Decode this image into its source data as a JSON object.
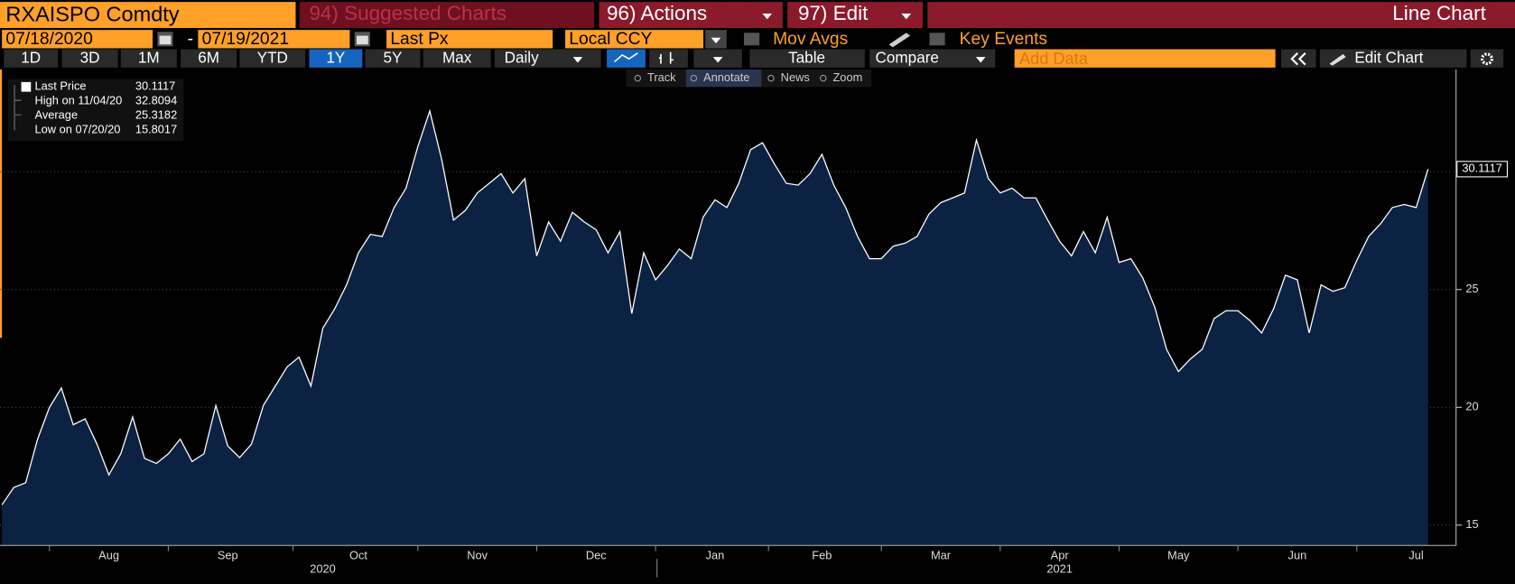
{
  "toolbar": {
    "ticker": "RXAISPO Comdty",
    "suggested": "94) Suggested Charts",
    "actions": "96) Actions",
    "edit": "97) Edit",
    "chart_type": "Line Chart",
    "start_date": "07/18/2020",
    "date_separator": "-",
    "end_date": "07/19/2021",
    "field": "Last Px",
    "currency": "Local CCY",
    "mov_avgs": "Mov Avgs",
    "key_events": "Key Events",
    "ranges": [
      "1D",
      "3D",
      "1M",
      "6M",
      "YTD",
      "1Y",
      "5Y",
      "Max"
    ],
    "selected_range": "1Y",
    "periodicity": "Daily",
    "table": "Table",
    "compare": "Compare",
    "add_data": "Add Data",
    "edit_chart": "Edit Chart",
    "tools": [
      "Track",
      "Annotate",
      "News",
      "Zoom"
    ]
  },
  "chart_data": {
    "type": "area",
    "color": "#ffffff",
    "fill": "#0b2242",
    "grid": true,
    "legend": [
      {
        "label": "Last Price",
        "value": "30.1117"
      },
      {
        "label": "High on 11/04/20",
        "value": "32.8094"
      },
      {
        "label": "Average",
        "value": "25.3182"
      },
      {
        "label": "Low on 07/20/20",
        "value": "15.8017"
      }
    ],
    "ylim": [
      14.14,
      34.34
    ],
    "yticks": [
      15,
      20,
      25,
      30
    ],
    "categories": [
      null,
      null,
      null,
      null,
      null,
      null,
      null,
      null,
      null,
      "Aug",
      null,
      null,
      null,
      null,
      null,
      null,
      null,
      null,
      null,
      "Sep",
      null,
      null,
      null,
      null,
      null,
      null,
      null,
      null,
      null,
      null,
      "Oct",
      null,
      null,
      null,
      null,
      null,
      null,
      null,
      null,
      null,
      "Nov",
      null,
      null,
      null,
      null,
      null,
      null,
      null,
      null,
      null,
      "Dec",
      null,
      null,
      null,
      null,
      null,
      null,
      null,
      null,
      null,
      "Jan",
      null,
      null,
      null,
      null,
      null,
      null,
      null,
      null,
      "Feb",
      null,
      null,
      null,
      null,
      null,
      null,
      null,
      null,
      null,
      "Mar",
      null,
      null,
      null,
      null,
      null,
      null,
      null,
      null,
      null,
      "Apr",
      null,
      null,
      null,
      null,
      null,
      null,
      null,
      null,
      null,
      "May",
      null,
      null,
      null,
      null,
      null,
      null,
      null,
      null,
      null,
      "Jun",
      null,
      null,
      null,
      null,
      null,
      null,
      null,
      null,
      null,
      "Jul",
      null
    ],
    "year_labels": [
      null,
      null,
      null,
      null,
      null,
      null,
      null,
      null,
      null,
      null,
      null,
      null,
      null,
      null,
      null,
      null,
      null,
      null,
      null,
      null,
      null,
      null,
      null,
      null,
      null,
      null,
      null,
      "2020",
      null,
      null,
      null,
      null,
      null,
      null,
      null,
      null,
      null,
      null,
      null,
      null,
      null,
      null,
      null,
      null,
      null,
      null,
      null,
      null,
      null,
      null,
      null,
      null,
      null,
      null,
      null,
      null,
      null,
      null,
      null,
      null,
      null,
      null,
      null,
      null,
      null,
      null,
      null,
      null,
      null,
      null,
      null,
      null,
      null,
      null,
      null,
      null,
      null,
      null,
      null,
      null,
      null,
      null,
      null,
      null,
      null,
      null,
      null,
      null,
      null,
      "2021",
      null,
      null,
      null,
      null,
      null,
      null,
      null,
      null,
      null,
      null,
      null,
      null,
      null,
      null,
      null,
      null,
      null,
      null,
      null,
      null,
      null,
      null,
      null,
      null,
      null,
      null,
      null,
      null,
      null,
      null,
      null
    ],
    "values": [
      15.86,
      16.6,
      16.8,
      18.65,
      20.0,
      20.82,
      19.26,
      19.51,
      18.44,
      17.13,
      18.03,
      19.59,
      17.83,
      17.62,
      18.03,
      18.65,
      17.7,
      18.03,
      20.08,
      18.36,
      17.87,
      18.44,
      20.08,
      20.9,
      21.72,
      22.13,
      20.9,
      23.36,
      24.18,
      25.2,
      26.56,
      27.34,
      27.25,
      28.48,
      29.3,
      31.07,
      32.58,
      30.53,
      27.95,
      28.36,
      29.1,
      29.51,
      29.92,
      29.1,
      29.71,
      26.43,
      27.87,
      27.05,
      28.28,
      27.87,
      27.54,
      26.56,
      27.46,
      23.98,
      26.56,
      25.41,
      26.02,
      26.72,
      26.31,
      28.07,
      28.81,
      28.48,
      29.51,
      30.94,
      31.23,
      30.33,
      29.51,
      29.43,
      29.92,
      30.74,
      29.43,
      28.48,
      27.25,
      26.31,
      26.31,
      26.84,
      26.97,
      27.25,
      28.2,
      28.69,
      28.89,
      29.1,
      31.35,
      29.71,
      29.1,
      29.3,
      28.89,
      28.89,
      27.95,
      27.05,
      26.43,
      27.46,
      26.56,
      28.07,
      26.15,
      26.31,
      25.49,
      24.26,
      22.46,
      21.52,
      22.05,
      22.46,
      23.77,
      24.1,
      24.1,
      23.69,
      23.16,
      24.18,
      25.61,
      25.41,
      23.16,
      25.2,
      24.92,
      25.08,
      26.23,
      27.25,
      27.79,
      28.48,
      28.61,
      28.48,
      30.1117
    ]
  }
}
